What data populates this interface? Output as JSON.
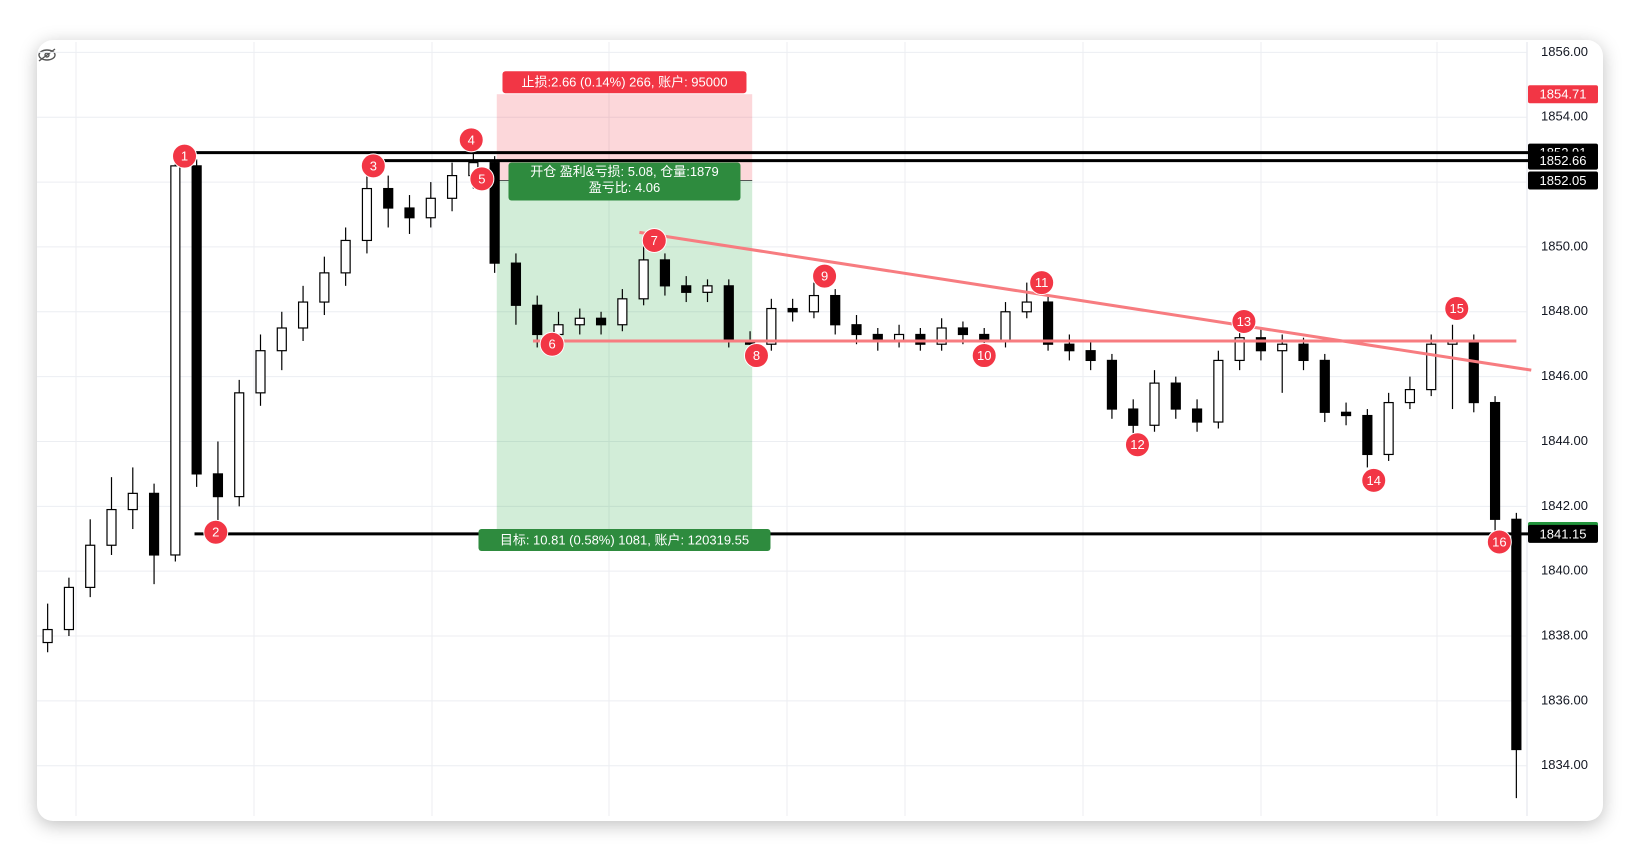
{
  "chart_data": {
    "type": "candlestick",
    "ylim": [
      1832.45,
      1856.32
    ],
    "yticks": [
      {
        "value": 1856,
        "label": "1856.00"
      },
      {
        "value": 1854,
        "label": "1854.00"
      },
      {
        "value": 1852,
        "label": "1852.00"
      },
      {
        "value": 1850,
        "label": "1850.00"
      },
      {
        "value": 1848,
        "label": "1848.00"
      },
      {
        "value": 1846,
        "label": "1846.00"
      },
      {
        "value": 1844,
        "label": "1844.00"
      },
      {
        "value": 1842,
        "label": "1842.00"
      },
      {
        "value": 1840,
        "label": "1840.00"
      },
      {
        "value": 1838,
        "label": "1838.00"
      },
      {
        "value": 1836,
        "label": "1836.00"
      },
      {
        "value": 1834,
        "label": "1834.00"
      }
    ],
    "grid": true,
    "candles": [
      [
        1837.8,
        1839.0,
        1837.5,
        1838.2
      ],
      [
        1838.2,
        1839.8,
        1838.0,
        1839.5
      ],
      [
        1839.5,
        1841.6,
        1839.2,
        1840.8
      ],
      [
        1840.8,
        1842.9,
        1840.5,
        1841.9
      ],
      [
        1841.9,
        1843.2,
        1841.3,
        1842.4
      ],
      [
        1842.4,
        1842.7,
        1839.6,
        1840.5
      ],
      [
        1840.5,
        1852.9,
        1840.3,
        1852.5
      ],
      [
        1852.5,
        1852.7,
        1842.6,
        1843.0
      ],
      [
        1843.0,
        1844.0,
        1841.2,
        1842.3
      ],
      [
        1842.3,
        1845.9,
        1842.0,
        1845.5
      ],
      [
        1845.5,
        1847.3,
        1845.1,
        1846.8
      ],
      [
        1846.8,
        1848.0,
        1846.2,
        1847.5
      ],
      [
        1847.5,
        1848.8,
        1847.1,
        1848.3
      ],
      [
        1848.3,
        1849.7,
        1847.9,
        1849.2
      ],
      [
        1849.2,
        1850.6,
        1848.8,
        1850.2
      ],
      [
        1850.2,
        1852.5,
        1849.8,
        1851.8
      ],
      [
        1851.8,
        1852.2,
        1850.6,
        1851.2
      ],
      [
        1851.2,
        1851.6,
        1850.4,
        1850.9
      ],
      [
        1850.9,
        1852.0,
        1850.6,
        1851.5
      ],
      [
        1851.5,
        1852.6,
        1851.1,
        1852.2
      ],
      [
        1852.2,
        1853.3,
        1851.8,
        1852.6
      ],
      [
        1852.6,
        1852.8,
        1849.2,
        1849.5
      ],
      [
        1849.5,
        1849.8,
        1847.6,
        1848.2
      ],
      [
        1848.2,
        1848.5,
        1846.9,
        1847.3
      ],
      [
        1847.3,
        1848.0,
        1847.0,
        1847.6
      ],
      [
        1847.6,
        1848.1,
        1847.3,
        1847.8
      ],
      [
        1847.8,
        1848.0,
        1847.3,
        1847.6
      ],
      [
        1847.6,
        1848.7,
        1847.4,
        1848.4
      ],
      [
        1848.4,
        1850.2,
        1848.2,
        1849.6
      ],
      [
        1849.6,
        1849.8,
        1848.5,
        1848.8
      ],
      [
        1848.8,
        1849.1,
        1848.3,
        1848.6
      ],
      [
        1848.6,
        1849.0,
        1848.3,
        1848.8
      ],
      [
        1848.8,
        1849.0,
        1846.9,
        1847.1
      ],
      [
        1847.1,
        1847.4,
        1846.6,
        1847.0
      ],
      [
        1847.0,
        1848.4,
        1846.8,
        1848.1
      ],
      [
        1848.1,
        1848.4,
        1847.7,
        1848.0
      ],
      [
        1848.0,
        1848.9,
        1847.8,
        1848.5
      ],
      [
        1848.5,
        1848.7,
        1847.3,
        1847.6
      ],
      [
        1847.6,
        1847.9,
        1847.0,
        1847.3
      ],
      [
        1847.3,
        1847.5,
        1846.8,
        1847.1
      ],
      [
        1847.1,
        1847.6,
        1846.9,
        1847.3
      ],
      [
        1847.3,
        1847.5,
        1846.8,
        1847.0
      ],
      [
        1847.0,
        1847.8,
        1846.8,
        1847.5
      ],
      [
        1847.5,
        1847.7,
        1847.0,
        1847.3
      ],
      [
        1847.3,
        1847.5,
        1846.8,
        1847.1
      ],
      [
        1847.1,
        1848.3,
        1846.9,
        1848.0
      ],
      [
        1848.0,
        1848.9,
        1847.8,
        1848.3
      ],
      [
        1848.3,
        1848.5,
        1846.8,
        1847.0
      ],
      [
        1847.0,
        1847.3,
        1846.5,
        1846.8
      ],
      [
        1846.8,
        1847.1,
        1846.2,
        1846.5
      ],
      [
        1846.5,
        1846.7,
        1844.7,
        1845.0
      ],
      [
        1845.0,
        1845.3,
        1844.0,
        1844.5
      ],
      [
        1844.5,
        1846.2,
        1844.3,
        1845.8
      ],
      [
        1845.8,
        1846.0,
        1844.7,
        1845.0
      ],
      [
        1845.0,
        1845.3,
        1844.3,
        1844.6
      ],
      [
        1844.6,
        1846.8,
        1844.4,
        1846.5
      ],
      [
        1846.5,
        1847.6,
        1846.2,
        1847.2
      ],
      [
        1847.2,
        1847.5,
        1846.5,
        1846.8
      ],
      [
        1846.8,
        1847.3,
        1845.5,
        1847.0
      ],
      [
        1847.0,
        1847.2,
        1846.2,
        1846.5
      ],
      [
        1846.5,
        1846.7,
        1844.6,
        1844.9
      ],
      [
        1844.9,
        1845.2,
        1844.5,
        1844.8
      ],
      [
        1844.8,
        1845.0,
        1843.2,
        1843.6
      ],
      [
        1843.6,
        1845.5,
        1843.4,
        1845.2
      ],
      [
        1845.2,
        1846.0,
        1845.0,
        1845.6
      ],
      [
        1845.6,
        1847.3,
        1845.4,
        1847.0
      ],
      [
        1847.0,
        1847.6,
        1845.0,
        1847.1
      ],
      [
        1847.1,
        1847.3,
        1844.9,
        1845.2
      ],
      [
        1845.2,
        1845.4,
        1840.9,
        1841.6
      ],
      [
        1841.6,
        1841.8,
        1833.0,
        1834.5
      ]
    ],
    "hlines": [
      {
        "price": 1852.91,
        "x": [
          6.4,
          69.9
        ],
        "color": "#000000"
      },
      {
        "price": 1852.66,
        "x": [
          15.3,
          69.9
        ],
        "color": "#000000"
      },
      {
        "price": 1841.15,
        "x": [
          6.9,
          69.9
        ],
        "color": "#000000"
      },
      {
        "price": 1847.1,
        "x": [
          22.8,
          69.0
        ],
        "color": "#f77c80"
      }
    ],
    "trendline": {
      "x": [
        27.8,
        69.7
      ],
      "y": [
        1850.45,
        1846.2
      ],
      "color": "#f77c80"
    },
    "markers": [
      {
        "label": "1",
        "x": 6.43,
        "price": 1852.8
      },
      {
        "label": "2",
        "x": 7.9,
        "price": 1841.2
      },
      {
        "label": "3",
        "x": 15.3,
        "price": 1852.5
      },
      {
        "label": "4",
        "x": 19.9,
        "price": 1853.3
      },
      {
        "label": "5",
        "x": 20.4,
        "price": 1852.1
      },
      {
        "label": "6",
        "x": 23.7,
        "price": 1847.0
      },
      {
        "label": "7",
        "x": 28.5,
        "price": 1850.2
      },
      {
        "label": "8",
        "x": 33.3,
        "price": 1846.65
      },
      {
        "label": "9",
        "x": 36.5,
        "price": 1849.1
      },
      {
        "label": "10",
        "x": 44.0,
        "price": 1846.65
      },
      {
        "label": "11",
        "x": 46.7,
        "price": 1848.9
      },
      {
        "label": "12",
        "x": 51.2,
        "price": 1843.9
      },
      {
        "label": "13",
        "x": 56.2,
        "price": 1847.7
      },
      {
        "label": "14",
        "x": 62.3,
        "price": 1842.8
      },
      {
        "label": "15",
        "x": 66.2,
        "price": 1848.1
      },
      {
        "label": "16",
        "x": 68.2,
        "price": 1840.9
      }
    ],
    "position": {
      "x": [
        21.1,
        33.1
      ],
      "entry": 1852.05,
      "stop": 1854.71,
      "target": 1841.24,
      "stop_label": "止损:2.66 (0.14%) 266, 账户: 95000",
      "entry_label": "开仓 盈利&亏损: 5.08, 仓量:1879",
      "ratio_label": "盈亏比: 4.06",
      "target_label": "目标: 10.81 (0.58%) 1081, 账户: 120319.55"
    },
    "price_tags": [
      {
        "value": 1854.71,
        "color": "#f23645"
      },
      {
        "value": 1852.91,
        "color": "#000000"
      },
      {
        "value": 1852.66,
        "color": "#000000"
      },
      {
        "value": 1852.05,
        "color": "#000000"
      },
      {
        "value": 1841.24,
        "color": "#22943c"
      },
      {
        "value": 1841.15,
        "color": "#000000"
      }
    ]
  }
}
